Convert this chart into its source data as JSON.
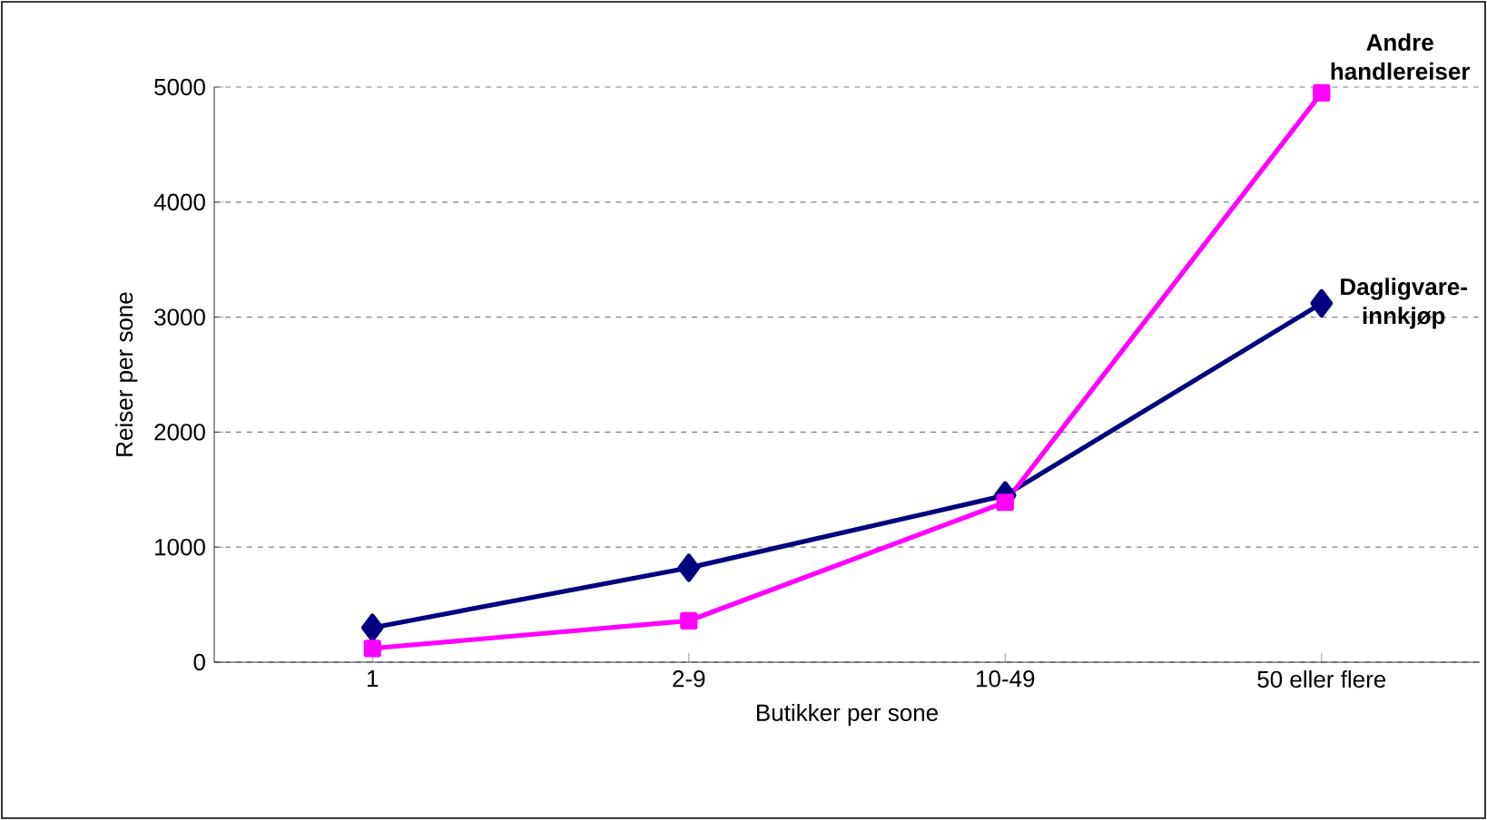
{
  "chart_data": {
    "type": "line",
    "xlabel": "Butikker per sone",
    "ylabel": "Reiser per sone",
    "categories": [
      "1",
      "2-9",
      "10-49",
      "50 eller flere"
    ],
    "series": [
      {
        "name": "Dagligvare-innkjøp",
        "color": "#000080",
        "marker": "diamond",
        "values": [
          300,
          820,
          1450,
          3120
        ]
      },
      {
        "name": "Andre handlereiser",
        "color": "#ff00ff",
        "marker": "square",
        "values": [
          120,
          360,
          1390,
          4950
        ]
      }
    ],
    "ylim": [
      0,
      5000
    ],
    "yticks": [
      0,
      1000,
      2000,
      3000,
      4000,
      5000
    ],
    "grid": "y",
    "legend": false,
    "line_style": "solid"
  }
}
